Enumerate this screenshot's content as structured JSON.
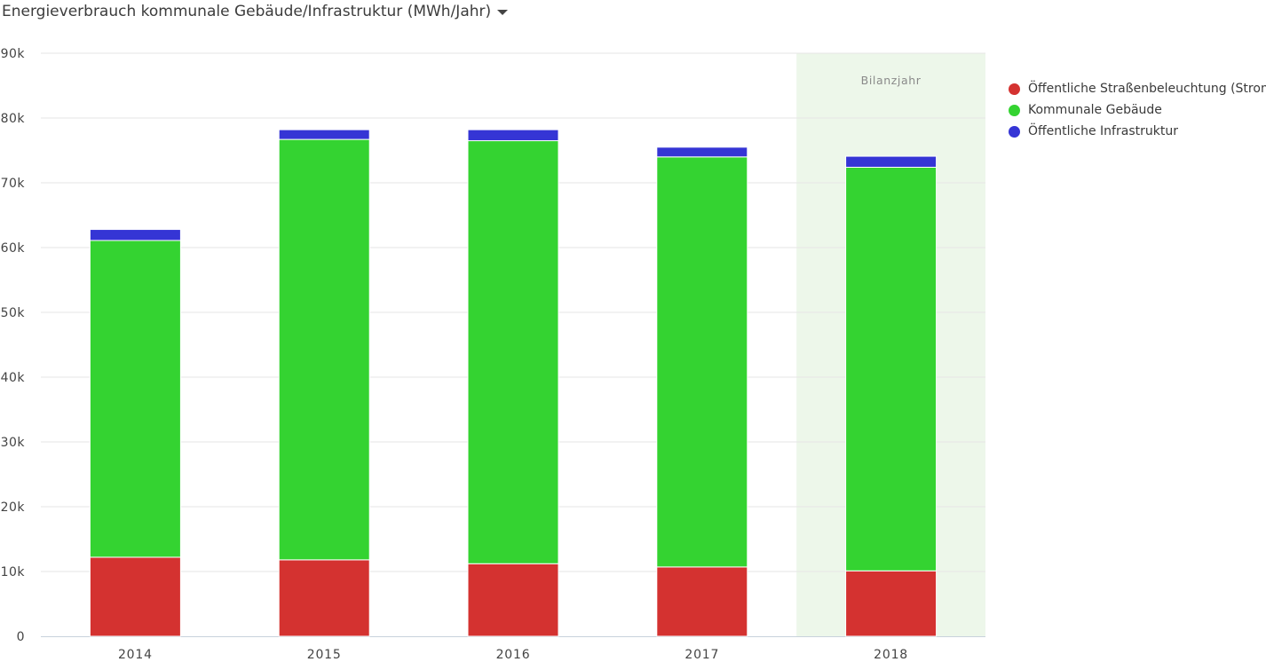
{
  "header": {
    "title": "Energieverbrauch kommunale Gebäude/Infrastruktur (MWh/Jahr)",
    "dropdown_icon": "caret-down-icon"
  },
  "chart_data": {
    "type": "bar",
    "stacked": true,
    "categories": [
      "2014",
      "2015",
      "2016",
      "2017",
      "2018"
    ],
    "series": [
      {
        "name": "Öffentliche Straßenbeleuchtung (Strom)",
        "color": "#d43230",
        "values": [
          12200,
          11800,
          11200,
          10700,
          10100
        ]
      },
      {
        "name": "Kommunale Gebäude",
        "color": "#34d331",
        "values": [
          48900,
          64900,
          65300,
          63300,
          62300
        ]
      },
      {
        "name": "Öffentliche Infrastruktur",
        "color": "#3535d5",
        "values": [
          1700,
          1500,
          1700,
          1500,
          1700
        ]
      }
    ],
    "ylim": [
      0,
      90000
    ],
    "yticks": [
      "0",
      "10k",
      "20k",
      "30k",
      "40k",
      "50k",
      "60k",
      "70k",
      "80k",
      "90k"
    ],
    "ytick_values": [
      0,
      10000,
      20000,
      30000,
      40000,
      50000,
      60000,
      70000,
      80000,
      90000
    ],
    "grid": true,
    "legend_position": "right",
    "highlight": {
      "category": "2018",
      "label": "Bilanzjahr",
      "color": "#edf7ea"
    }
  }
}
